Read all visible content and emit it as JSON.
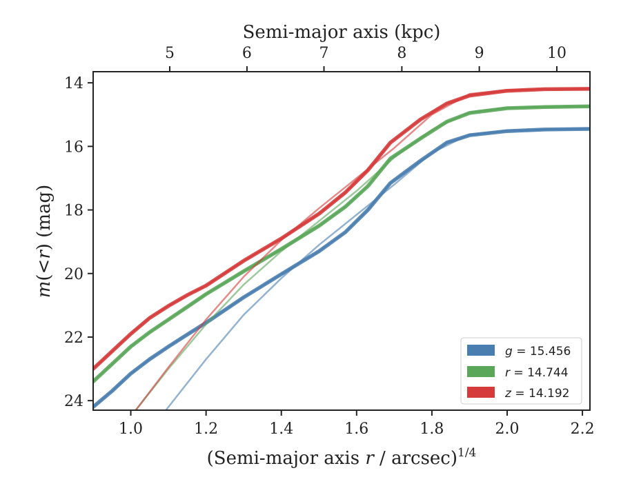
{
  "chart_data": {
    "type": "line",
    "title": "",
    "xlabel": "(Semi-major axis r / arcsec)^{1/4}",
    "xlabel_parts": [
      "(Semi-major axis ",
      "r",
      " / arcsec)",
      "1/4"
    ],
    "ylabel": "m(<r) (mag)",
    "ylabel_parts": [
      "m",
      "(",
      "<",
      "r",
      ")",
      " (mag)"
    ],
    "top_xlabel": "Semi-major axis (kpc)",
    "xlim": [
      0.9,
      2.22
    ],
    "ylim": [
      24.3,
      13.65
    ],
    "y_inverted": true,
    "x_ticks": [
      1.0,
      1.2,
      1.4,
      1.6,
      1.8,
      2.0,
      2.2
    ],
    "x_tick_labels": [
      "1.0",
      "1.2",
      "1.4",
      "1.6",
      "1.8",
      "2.0",
      "2.2"
    ],
    "y_ticks": [
      14,
      16,
      18,
      20,
      22,
      24
    ],
    "y_tick_labels": [
      "14",
      "16",
      "18",
      "20",
      "22",
      "24"
    ],
    "top_ticks": [
      1.1035,
      1.3087,
      1.5133,
      1.7202,
      1.926,
      2.132
    ],
    "top_tick_labels": [
      "5",
      "6",
      "7",
      "8",
      "9",
      "10"
    ],
    "grid": false,
    "legend_position": "lower-right",
    "series": [
      {
        "name": "g = 15.456",
        "legend_var": "g",
        "legend_value": "15.456",
        "color": "#4a7eb0",
        "x": [
          0.9,
          0.95,
          1.0,
          1.05,
          1.1,
          1.15,
          1.2,
          1.3,
          1.4,
          1.5,
          1.57,
          1.63,
          1.69,
          1.77,
          1.84,
          1.9,
          2.0,
          2.1,
          2.22
        ],
        "y": [
          24.2,
          23.7,
          23.15,
          22.7,
          22.3,
          21.92,
          21.55,
          20.75,
          20.02,
          19.3,
          18.7,
          18.0,
          17.15,
          16.45,
          15.88,
          15.65,
          15.52,
          15.47,
          15.45
        ],
        "model_x": [
          1.09,
          1.2,
          1.3,
          1.4,
          1.5,
          1.6,
          1.7,
          1.8,
          1.9,
          2.0,
          2.22
        ],
        "model_y": [
          24.35,
          22.7,
          21.3,
          20.15,
          19.1,
          18.15,
          17.2,
          16.2,
          15.62,
          15.5,
          15.44
        ]
      },
      {
        "name": "r = 14.744",
        "legend_var": "r",
        "legend_value": "14.744",
        "color": "#5aa75a",
        "x": [
          0.9,
          0.95,
          1.0,
          1.05,
          1.1,
          1.15,
          1.2,
          1.3,
          1.4,
          1.5,
          1.57,
          1.63,
          1.69,
          1.77,
          1.84,
          1.9,
          2.0,
          2.1,
          2.22
        ],
        "y": [
          23.4,
          22.85,
          22.3,
          21.85,
          21.45,
          21.05,
          20.65,
          19.93,
          19.23,
          18.5,
          17.9,
          17.25,
          16.38,
          15.75,
          15.22,
          14.95,
          14.8,
          14.76,
          14.74
        ],
        "model_x": [
          1.01,
          1.1,
          1.2,
          1.3,
          1.4,
          1.5,
          1.6,
          1.7,
          1.8,
          1.9,
          2.0,
          2.22
        ],
        "model_y": [
          24.35,
          23.0,
          21.6,
          20.35,
          19.3,
          18.35,
          17.4,
          16.35,
          15.48,
          14.92,
          14.78,
          14.74
        ]
      },
      {
        "name": "z = 14.192",
        "legend_var": "z",
        "legend_value": "14.192",
        "color": "#d63b3b",
        "x": [
          0.9,
          0.95,
          1.0,
          1.05,
          1.1,
          1.15,
          1.2,
          1.3,
          1.4,
          1.5,
          1.57,
          1.63,
          1.69,
          1.77,
          1.84,
          1.9,
          2.0,
          2.1,
          2.22
        ],
        "y": [
          23.0,
          22.45,
          21.9,
          21.4,
          21.02,
          20.68,
          20.38,
          19.6,
          18.9,
          18.12,
          17.45,
          16.75,
          15.88,
          15.15,
          14.65,
          14.4,
          14.25,
          14.2,
          14.19
        ],
        "model_x": [
          1.01,
          1.1,
          1.2,
          1.3,
          1.4,
          1.5,
          1.6,
          1.7,
          1.8,
          1.9,
          2.0,
          2.22
        ],
        "model_y": [
          24.35,
          22.95,
          21.45,
          20.1,
          18.95,
          17.95,
          17.0,
          16.05,
          15.0,
          14.35,
          14.22,
          14.19
        ]
      }
    ]
  }
}
